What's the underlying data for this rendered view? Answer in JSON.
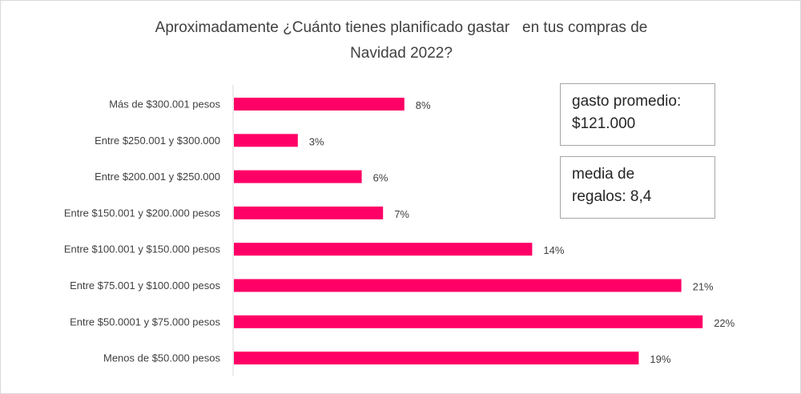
{
  "chart_data": {
    "type": "bar",
    "orientation": "horizontal",
    "title_lines": [
      "Aproximadamente ¿Cuánto tienes planificado gastar   en tus compras de",
      "Navidad 2022?"
    ],
    "categories": [
      "Más de $300.001 pesos",
      "Entre $250.001 y $300.000",
      "Entre $200.001 y $250.000",
      "Entre $150.001 y $200.000 pesos",
      "Entre $100.001 y $150.000 pesos",
      "Entre $75.001 y $100.000 pesos",
      "Entre $50.0001 y $75.000 pesos",
      "Menos de $50.000 pesos"
    ],
    "values": [
      8,
      3,
      6,
      7,
      14,
      21,
      22,
      19
    ],
    "value_labels": [
      "8%",
      "3%",
      "6%",
      "7%",
      "14%",
      "21%",
      "22%",
      "19%"
    ],
    "unit": "%",
    "xlim": [
      0,
      23
    ],
    "bar_color": "#ff0066",
    "grid": false,
    "legend": "none"
  },
  "stats": {
    "avg_spend": [
      "gasto promedio:",
      "$121.000"
    ],
    "avg_gifts": [
      "media de",
      "regalos: 8,4"
    ]
  }
}
